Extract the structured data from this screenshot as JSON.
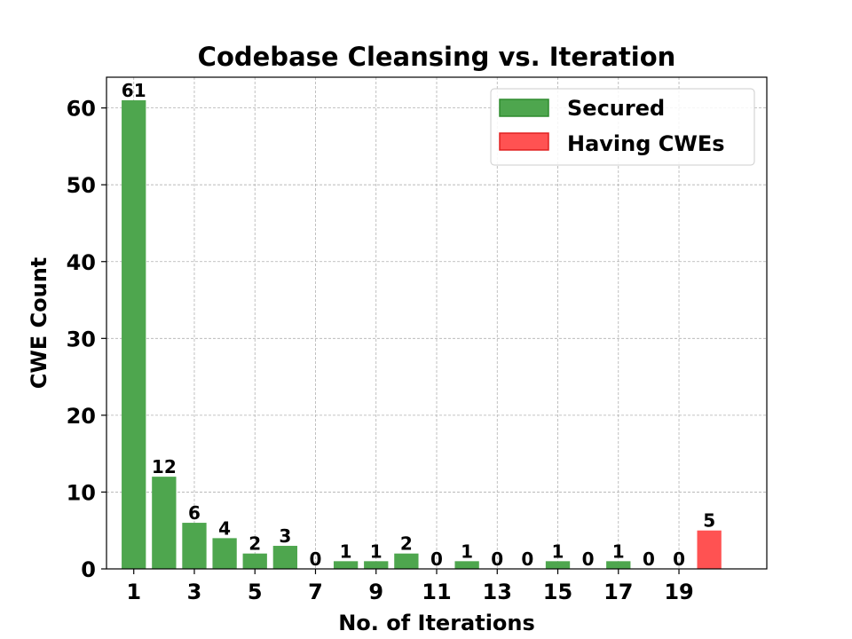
{
  "chart_data": {
    "type": "bar",
    "title": "Codebase Cleansing vs. Iteration",
    "xlabel": "No. of Iterations",
    "ylabel": "CWE Count",
    "x": [
      1,
      2,
      3,
      4,
      5,
      6,
      7,
      8,
      9,
      10,
      11,
      12,
      13,
      14,
      15,
      16,
      17,
      18,
      19,
      20
    ],
    "values": [
      61,
      12,
      6,
      4,
      2,
      3,
      0,
      1,
      1,
      2,
      0,
      1,
      0,
      0,
      1,
      0,
      1,
      0,
      0,
      5
    ],
    "bar_status": [
      "Secured",
      "Secured",
      "Secured",
      "Secured",
      "Secured",
      "Secured",
      "Secured",
      "Secured",
      "Secured",
      "Secured",
      "Secured",
      "Secured",
      "Secured",
      "Secured",
      "Secured",
      "Secured",
      "Secured",
      "Secured",
      "Secured",
      "Having CWEs"
    ],
    "xticks": [
      1,
      3,
      5,
      7,
      9,
      11,
      13,
      15,
      17,
      19
    ],
    "yticks": [
      0,
      10,
      20,
      30,
      40,
      50,
      60
    ],
    "ylim": [
      0,
      64
    ],
    "xlim": [
      0.1,
      21.9
    ],
    "grid": true,
    "legend": {
      "placement": "top-right",
      "items": [
        {
          "label": "Secured",
          "color": "#4ea64e",
          "edge": "#2e8b2e"
        },
        {
          "label": "Having CWEs",
          "color": "#ff5252",
          "edge": "#e02020"
        }
      ]
    }
  }
}
